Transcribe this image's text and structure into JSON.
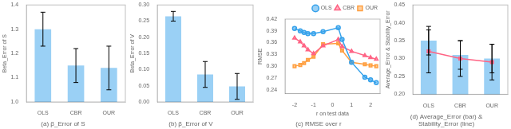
{
  "chart_data": [
    {
      "type": "bar",
      "title": "(a) β_Error of S",
      "categories": [
        "OLS",
        "CBR",
        "OUR"
      ],
      "values": [
        1.3,
        1.15,
        1.14
      ],
      "errors": [
        0.07,
        0.07,
        0.09
      ],
      "ylabel": "Beta_Error of S",
      "ylim": [
        1.0,
        1.4
      ],
      "yticks": [
        {
          "value": 1.0,
          "label": "1.0"
        },
        1.1,
        1.2,
        1.3,
        1.4
      ],
      "grid": false
    },
    {
      "type": "bar",
      "title": "(b) β_Error of V",
      "categories": [
        "OLS",
        "CBR",
        "OUR"
      ],
      "values": [
        0.265,
        0.085,
        0.048
      ],
      "errors": [
        0.015,
        0.04,
        0.04
      ],
      "ylabel": "Beta_Error of V",
      "ylim": [
        0.0,
        0.3
      ],
      "yticks": [
        {
          "value": 0.0,
          "label": "0.00"
        },
        0.05,
        {
          "value": 0.1,
          "label": "0.10"
        },
        0.15,
        {
          "value": 0.2,
          "label": "0.20"
        },
        0.25,
        {
          "value": 0.3,
          "label": "0.30"
        }
      ],
      "grid": false
    },
    {
      "type": "line",
      "title": "(c) RMSE over r",
      "x": [
        -2.0,
        -1.7,
        -1.5,
        -1.3,
        -1.0,
        -0.5,
        0.3,
        0.5,
        1.0,
        1.7,
        2.0,
        2.3
      ],
      "series": [
        {
          "name": "OLS",
          "marker": "circle",
          "values": [
            0.396,
            0.39,
            0.386,
            0.383,
            0.383,
            0.388,
            0.398,
            0.368,
            0.31,
            0.272,
            0.265,
            0.258
          ]
        },
        {
          "name": "CBR",
          "marker": "triangle",
          "values": [
            0.372,
            0.362,
            0.352,
            0.342,
            0.332,
            0.352,
            0.368,
            0.35,
            0.338,
            0.327,
            0.322,
            0.318
          ]
        },
        {
          "name": "OUR",
          "marker": "square",
          "values": [
            0.3,
            0.303,
            0.308,
            0.316,
            0.324,
            0.356,
            0.358,
            0.34,
            0.31,
            0.305,
            0.302,
            0.3
          ]
        }
      ],
      "xlabel": "r on test data",
      "ylabel": "RMSE",
      "xlim": [
        -2.5,
        2.5
      ],
      "xticks": [
        -2,
        -1,
        0,
        1,
        2
      ],
      "ylim": [
        0.23,
        0.42
      ],
      "yticks": [
        0.24,
        0.27,
        {
          "value": 0.3,
          "label": "0.30"
        },
        0.33,
        0.36,
        0.39,
        0.42
      ],
      "legend": "upper right",
      "grid": false
    },
    {
      "type": "bar",
      "title": "(d) Average_Error (bar) &\nStability_Error (line)",
      "categories": [
        "OLS",
        "CBR",
        "OUR"
      ],
      "series": [
        {
          "type": "bar",
          "values": [
            0.35,
            0.31,
            0.3
          ],
          "errors": [
            0.04,
            0.04,
            0.04
          ]
        },
        {
          "type": "line",
          "marker": "square",
          "values": [
            0.32,
            0.3,
            0.29
          ],
          "errors": [
            0.06,
            0.05,
            0.05
          ]
        }
      ],
      "ylabel": "Average_Error & Stability_Error",
      "ylim": [
        0.2,
        0.45
      ],
      "yticks": [
        {
          "value": 0.2,
          "label": "0.20"
        },
        0.25,
        {
          "value": 0.3,
          "label": "0.30"
        },
        0.35,
        {
          "value": 0.4,
          "label": "0.40"
        },
        0.45
      ],
      "grid": false
    }
  ]
}
